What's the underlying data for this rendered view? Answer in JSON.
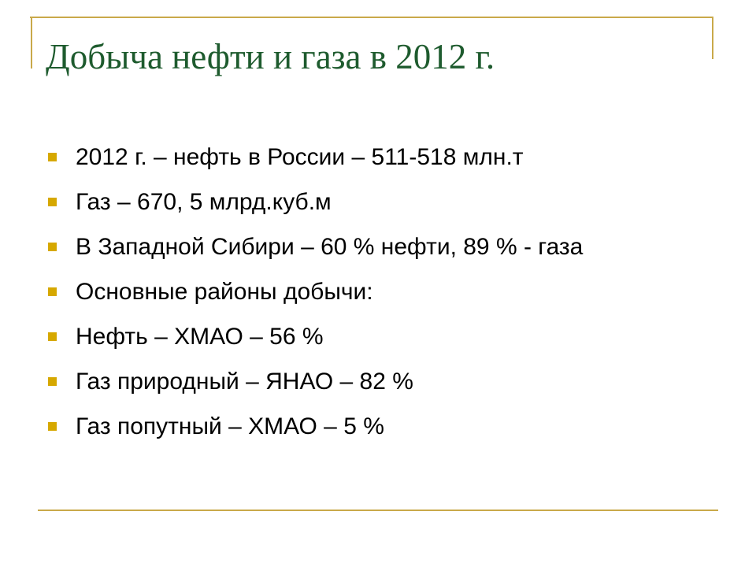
{
  "header": {
    "title": "Добыча нефти и газа в 2012 г."
  },
  "bullets": [
    "2012 г. – нефть в России – 511-518 млн.т",
    "Газ – 670, 5 млрд.куб.м",
    "В Западной Сибири – 60 % нефти, 89 % - газа",
    "Основные районы добычи:",
    "Нефть – ХМАО – 56 %",
    "Газ природный – ЯНАО – 82 %",
    "Газ попутный – ХМАО – 5 %"
  ]
}
